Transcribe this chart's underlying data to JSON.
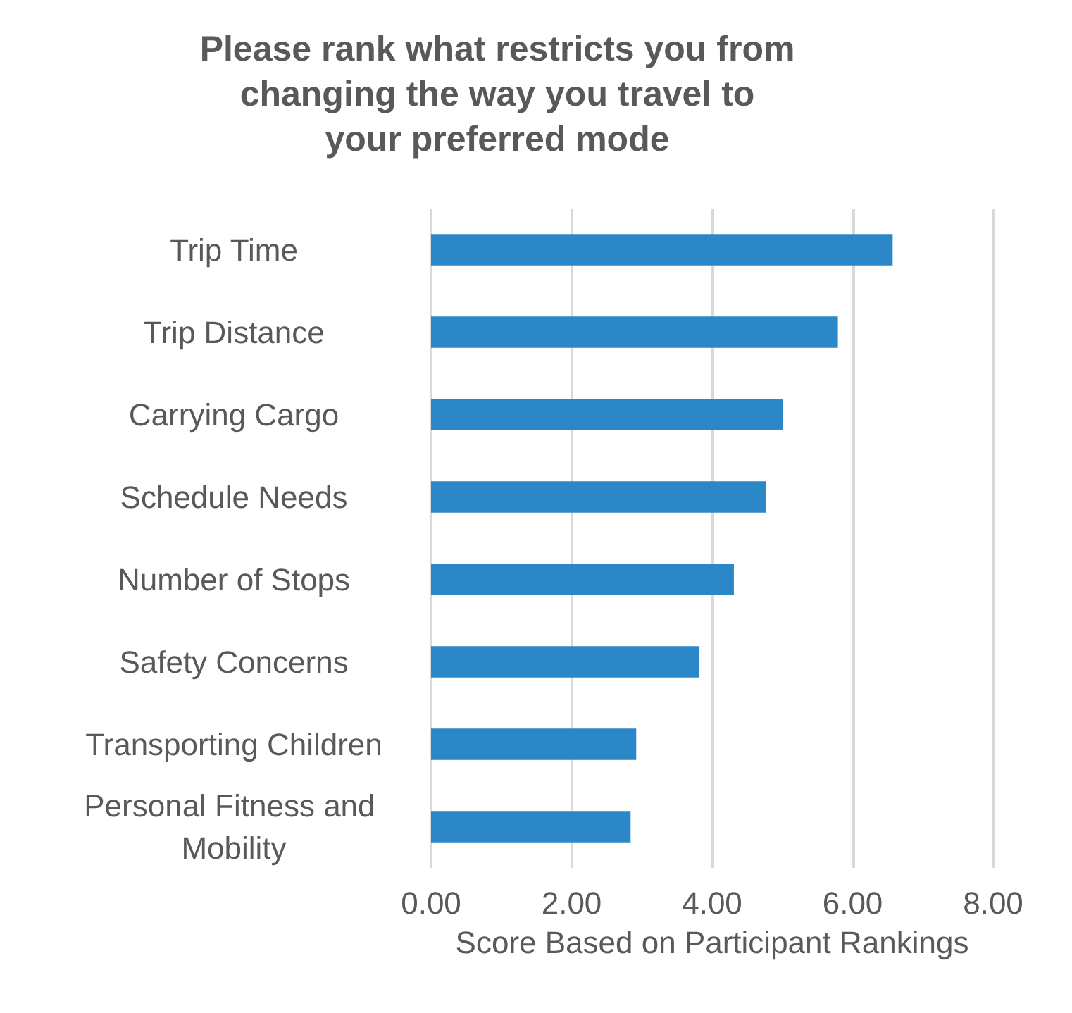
{
  "chart_data": {
    "type": "bar",
    "orientation": "horizontal",
    "title": "Please rank what restricts you from changing the way you travel to your preferred mode",
    "xlabel": "Score Based on Participant Rankings",
    "categories": [
      "Trip Time",
      "Trip Distance",
      "Carrying Cargo",
      "Schedule Needs",
      "Number of Stops",
      "Safety Concerns",
      "Transporting Children",
      "Personal Fitness and Mobility"
    ],
    "values": [
      6.57,
      5.79,
      5.01,
      4.77,
      4.31,
      3.82,
      2.92,
      2.84
    ],
    "color": "#2b87c8",
    "xlim": [
      0,
      8
    ],
    "xticks": [
      {
        "value": 0,
        "label": "0.00"
      },
      {
        "value": 2,
        "label": "2.00"
      },
      {
        "value": 4,
        "label": "4.00"
      },
      {
        "value": 6,
        "label": "6.00"
      },
      {
        "value": 8,
        "label": "8.00"
      }
    ],
    "grid": "x"
  }
}
